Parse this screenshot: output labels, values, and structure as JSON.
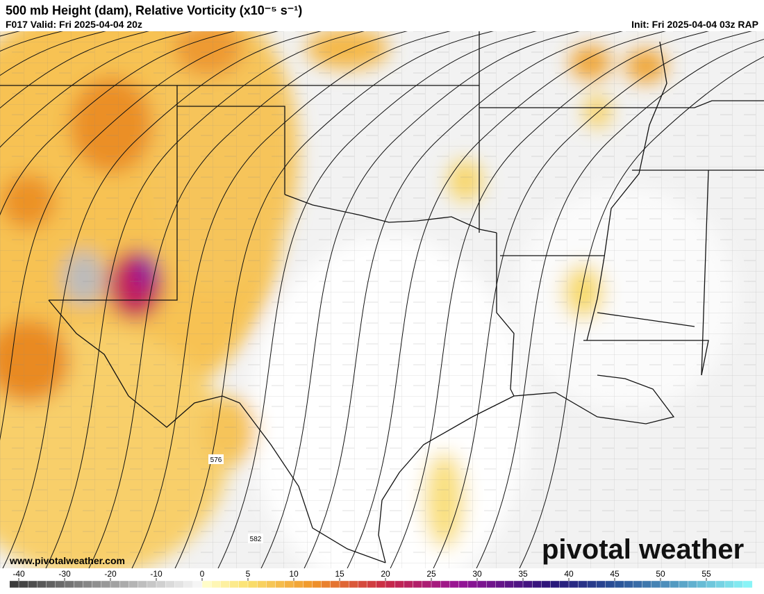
{
  "header": {
    "title": "500 mb Height (dam), Relative Vorticity (x10⁻⁵ s⁻¹)",
    "valid": "F017 Valid: Fri 2025-04-04 20z",
    "init": "Init: Fri 2025-04-04 03z RAP"
  },
  "map": {
    "contour_labels": [
      576,
      582
    ]
  },
  "footer": {
    "url": "www.pivotalweather.com",
    "brand": "pivotal weather"
  },
  "colorbar": {
    "lim": [
      -42,
      60
    ],
    "ticks": [
      -40,
      -30,
      -20,
      -10,
      0,
      5,
      10,
      15,
      20,
      25,
      30,
      35,
      40,
      45,
      50,
      55
    ]
  }
}
